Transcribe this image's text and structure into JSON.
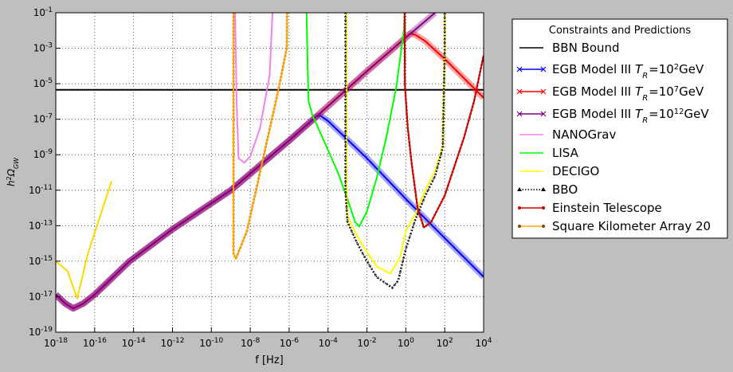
{
  "chart_data": {
    "type": "line",
    "xlabel": "f [Hz]",
    "ylabel": "h2ΩGW",
    "xscale": "log",
    "yscale": "log",
    "grid": true,
    "legend_title": "Constraints and Predictions",
    "legend_loc": "outside-right",
    "xlim": [
      1e-18,
      10000.0
    ],
    "ylim": [
      1e-19,
      0.1
    ],
    "xticks": [
      {
        "value": 1e-18,
        "label": "10-18"
      },
      {
        "value": 1e-16,
        "label": "10-16"
      },
      {
        "value": 1e-14,
        "label": "10-14"
      },
      {
        "value": 1e-12,
        "label": "10-12"
      },
      {
        "value": 1e-10,
        "label": "10-10"
      },
      {
        "value": 1e-08,
        "label": "10-8"
      },
      {
        "value": 1e-06,
        "label": "10-6"
      },
      {
        "value": 0.0001,
        "label": "10-4"
      },
      {
        "value": 0.01,
        "label": "10-2"
      },
      {
        "value": 1,
        "label": "100"
      },
      {
        "value": 100,
        "label": "102"
      },
      {
        "value": 10000,
        "label": "104"
      }
    ],
    "yticks": [
      {
        "value": 1e-19,
        "label": "10-19"
      },
      {
        "value": 1e-17,
        "label": "10-17"
      },
      {
        "value": 1e-15,
        "label": "10-15"
      },
      {
        "value": 1e-13,
        "label": "10-13"
      },
      {
        "value": 1e-11,
        "label": "10-11"
      },
      {
        "value": 1e-09,
        "label": "10-9"
      },
      {
        "value": 1e-07,
        "label": "10-7"
      },
      {
        "value": 1e-05,
        "label": "10-5"
      },
      {
        "value": 0.001,
        "label": "10-3"
      },
      {
        "value": 0.1,
        "label": "10-1"
      }
    ],
    "series": [
      {
        "name": "BBN Bound",
        "color": "#000000",
        "linestyle": "solid",
        "marker": "none",
        "x": [
          1e-18,
          10000
        ],
        "values": [
          4.5e-06,
          4.5e-06
        ]
      },
      {
        "name": "EGB Model III TR=102GeV",
        "color": "#0000ff",
        "linestyle": "solid",
        "marker": "x",
        "x": [
          1e-18,
          3.2e-18,
          7.9e-18,
          2.5e-17,
          1e-16,
          6.3e-15,
          1e-12,
          1e-09,
          1e-06,
          2.5e-05,
          4e-05,
          0.0001,
          0.01,
          1,
          100,
          10000
        ],
        "values": [
          1.3e-17,
          4e-18,
          2.2e-18,
          4e-18,
          1.3e-17,
          1e-15,
          6.3e-14,
          1e-11,
          6.3e-09,
          1.4e-07,
          1.6e-07,
          7.9e-08,
          6.3e-10,
          3.2e-12,
          2e-14,
          1.3e-16
        ]
      },
      {
        "name": "EGB Model III TR=107GeV",
        "color": "#ff0000",
        "linestyle": "solid",
        "marker": "x",
        "x": [
          1e-18,
          3.2e-18,
          7.9e-18,
          2.5e-17,
          1e-16,
          6.3e-15,
          1e-12,
          1e-09,
          1e-06,
          2.5e-05,
          0.01,
          1,
          1.7,
          3.2,
          10,
          100,
          1000,
          10000
        ],
        "values": [
          1.3e-17,
          4e-18,
          2.2e-18,
          4e-18,
          1.3e-17,
          1e-15,
          6.3e-14,
          1e-11,
          6.3e-09,
          1.4e-07,
          5e-05,
          0.004,
          0.0068,
          0.0056,
          0.0025,
          0.00025,
          2e-05,
          1.6e-06
        ]
      },
      {
        "name": "EGB Model III TR=1012GeV",
        "color": "#800080",
        "linestyle": "solid",
        "marker": "x",
        "x": [
          1e-18,
          3.2e-18,
          7.9e-18,
          2.5e-17,
          1e-16,
          6.3e-15,
          1e-12,
          1e-09,
          1e-06,
          2.5e-05,
          0.01,
          1,
          32
        ],
        "values": [
          1.3e-17,
          4e-18,
          2.2e-18,
          4e-18,
          1.3e-17,
          1e-15,
          6.3e-14,
          1e-11,
          6.3e-09,
          1.4e-07,
          5e-05,
          0.004,
          0.1
        ]
      },
      {
        "name": "NANOGrav",
        "color": "#ee82ee",
        "linestyle": "solid",
        "marker": "none",
        "x": [
          1.66e-09,
          2e-09,
          2.5e-09,
          5e-09,
          1e-08,
          3.2e-08,
          1e-07,
          1.26e-07,
          1.41e-07
        ],
        "values": [
          0.1,
          1e-06,
          6.3e-10,
          3.6e-10,
          7.9e-10,
          3.2e-08,
          3.2e-05,
          0.01,
          0.1
        ]
      },
      {
        "name": "LISA",
        "color": "#00ff00",
        "linestyle": "solid",
        "marker": "none",
        "x": [
          7.9e-06,
          8.9e-06,
          1e-05,
          1.6e-05,
          5e-05,
          0.00032,
          0.001,
          0.0025,
          0.004,
          0.01,
          0.032,
          0.1,
          0.32,
          0.79,
          0.87
        ],
        "values": [
          0.1,
          0.0001,
          1e-06,
          1.6e-07,
          1e-08,
          1e-10,
          3.2e-12,
          1.6e-13,
          8.9e-14,
          6.3e-13,
          5e-11,
          1e-08,
          6.3e-06,
          0.01,
          0.1
        ]
      },
      {
        "name": "DECIGO",
        "color": "#ffff00",
        "linestyle": "solid",
        "marker": "none",
        "x": [
          0.00089,
          0.00089,
          0.001,
          0.0032,
          0.01,
          0.032,
          0.16,
          0.5,
          1,
          3.2,
          10,
          32,
          79,
          100,
          100
        ],
        "values": [
          0.1,
          1e-11,
          3.2e-13,
          2.5e-14,
          3.2e-15,
          5e-16,
          2e-16,
          1.6e-15,
          5e-14,
          5e-13,
          1e-11,
          1.26e-10,
          3.2e-09,
          0.001,
          0.1
        ]
      },
      {
        "name": "BBO",
        "color": "#000000",
        "linestyle": "dotted",
        "marker": "triangle",
        "x": [
          0.00079,
          0.00079,
          0.001,
          0.0032,
          0.01,
          0.032,
          0.2,
          0.4,
          1,
          3.2,
          10,
          32,
          79,
          100,
          100
        ],
        "values": [
          0.1,
          1e-11,
          1.6e-13,
          1e-14,
          1e-15,
          1.26e-16,
          3.2e-17,
          7.9e-17,
          5e-15,
          2.5e-13,
          5e-12,
          6.3e-11,
          2.5e-09,
          0.001,
          0.1
        ]
      },
      {
        "name": "Einstein Telescope",
        "color": "#cc0000",
        "linestyle": "solid",
        "marker": "dot",
        "x": [
          0.87,
          0.89,
          1.26,
          2,
          4,
          8.5,
          20,
          100,
          1000,
          3200,
          10000
        ],
        "values": [
          0.1,
          1e-05,
          3.2e-08,
          3.2e-10,
          1e-12,
          7.9e-14,
          1.6e-13,
          5e-12,
          1e-08,
          1e-06,
          0.0004
        ]
      },
      {
        "name": "Square Kilometer Array 20",
        "color": "#ffa500",
        "linestyle": "solid",
        "marker": "dot",
        "x": [
          1.38e-09,
          1.38e-09,
          1.8e-09,
          6.8e-09,
          4.5e-08,
          3e-07,
          7.6e-07,
          7.9e-07
        ],
        "values": [
          0.1,
          2.8e-15,
          1.35e-15,
          5e-14,
          5.5e-10,
          6.3e-06,
          0.00107,
          0.1
        ]
      },
      {
        "color": "#ffd700",
        "linestyle": "solid",
        "marker": "none",
        "x": [
          1e-18,
          4e-18,
          1.26e-17,
          4.4e-17,
          7.4e-16
        ],
        "values": [
          1e-15,
          2.8e-16,
          7.9e-18,
          2.5e-15,
          3.2e-11
        ]
      }
    ]
  }
}
